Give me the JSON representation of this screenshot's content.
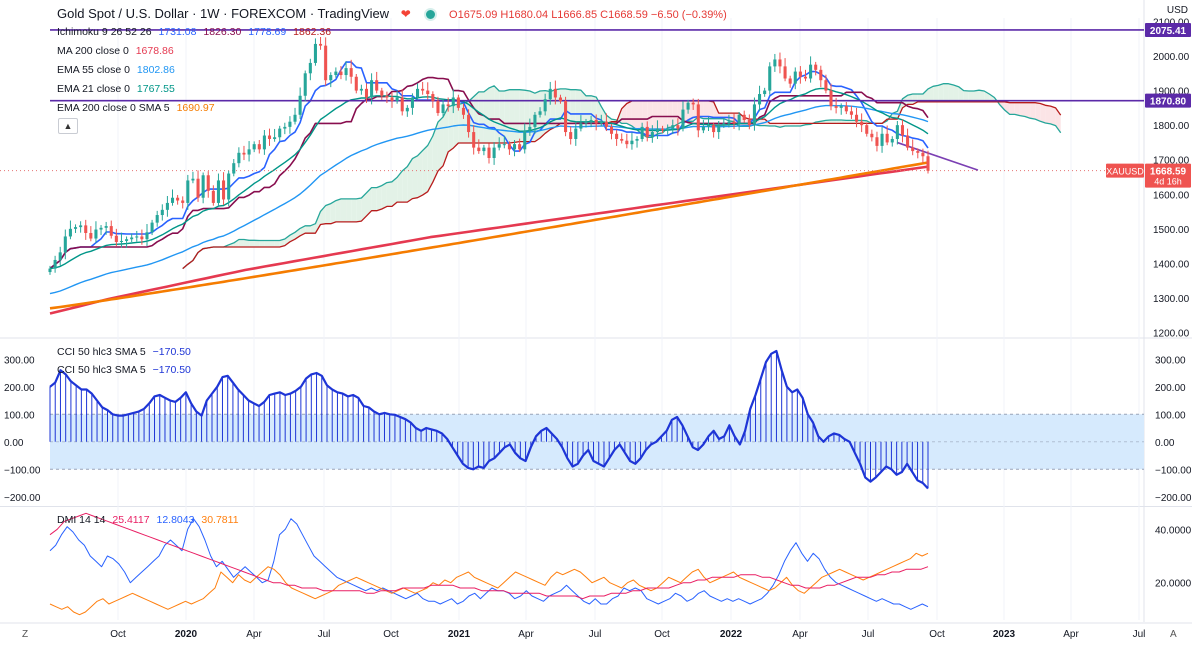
{
  "header": {
    "symbol_title": "Gold Spot / U.S. Dollar · 1W · FOREXCOM · TradingView",
    "open": "O1675.09",
    "high": "H1680.04",
    "low": "L1666.85",
    "close": "C1668.59",
    "change": "−6.50 (−0.39%)",
    "currency": "USD"
  },
  "legend": {
    "ichimoku": {
      "label": "Ichimoku 9 26 52 26",
      "v1": "1731.08",
      "v2": "1826.30",
      "v3": "1778.69",
      "v4": "1862.36"
    },
    "ma200": {
      "label": "MA 200 close 0",
      "value": "1678.86"
    },
    "ema55": {
      "label": "EMA 55 close 0",
      "value": "1802.86"
    },
    "ema21": {
      "label": "EMA 21 close 0",
      "value": "1767.55"
    },
    "ema200": {
      "label": "EMA 200 close 0 SMA 5",
      "value": "1690.97"
    },
    "cci_a": {
      "label": "CCI 50 hlc3 SMA 5",
      "value": "−170.50"
    },
    "cci_b": {
      "label": "CCI 50 hlc3 SMA 5",
      "value": "−170.50"
    },
    "dmi": {
      "label": "DMI 14 14",
      "v1": "25.4117",
      "v2": "12.8043",
      "v3": "30.7811"
    }
  },
  "price_tags": {
    "ticker": "XAUUSD",
    "last": "1668.59",
    "countdown": "4d 16h",
    "level_high": "2075.41",
    "level_mid": "1870.80"
  },
  "controls": {
    "z_left": "Z",
    "z_right": "A"
  },
  "colors": {
    "up": "#26a69a",
    "down": "#ef5350",
    "kijun": "#880e4f",
    "tenkan": "#2962ff",
    "cloud_up": "#e3f2e7",
    "cloud_down": "#fbe4e6",
    "spanA": "#26a69a",
    "spanB": "#b71c1c",
    "ma200": "#e53950",
    "ema55": "#2196f3",
    "ema21": "#009688",
    "ema200": "#f57c00",
    "cci": "#1e35d6",
    "level": "#5b2aa8",
    "dmi_plus": "#2962ff",
    "dmi_minus": "#ff7f0e",
    "adx": "#e91e63"
  },
  "chart_data": {
    "type": "line",
    "x_ticks": [
      "Oct",
      "2020",
      "Apr",
      "Jul",
      "Oct",
      "2021",
      "Apr",
      "Jul",
      "Oct",
      "2022",
      "Apr",
      "Jul",
      "Oct",
      "2023",
      "Apr",
      "Jul"
    ],
    "price_axis_ticks": [
      "2100.00",
      "2000.00",
      "1900.00",
      "1800.00",
      "1700.00",
      "1600.00",
      "1500.00",
      "1400.00",
      "1300.00",
      "1200.00"
    ],
    "price_ylim": [
      1190,
      2110
    ],
    "cci_axis_ticks": [
      "300.00",
      "200.00",
      "100.00",
      "0.00",
      "−100.00",
      "−200.00"
    ],
    "cci_ylim": [
      -230,
      370
    ],
    "cci_band": [
      -100,
      100
    ],
    "dmi_axis_ticks": [
      "40.0000",
      "20.0000"
    ],
    "dmi_ylim": [
      6,
      48
    ],
    "horizontal_levels": [
      2075.41,
      1870.8
    ],
    "last_close": 1668.59,
    "close": [
      1385,
      1410,
      1432,
      1478,
      1500,
      1505,
      1510,
      1488,
      1472,
      1498,
      1503,
      1508,
      1480,
      1462,
      1465,
      1470,
      1475,
      1478,
      1470,
      1490,
      1518,
      1540,
      1555,
      1575,
      1590,
      1582,
      1575,
      1640,
      1645,
      1590,
      1655,
      1610,
      1575,
      1640,
      1585,
      1660,
      1690,
      1720,
      1715,
      1730,
      1745,
      1730,
      1770,
      1760,
      1765,
      1790,
      1795,
      1810,
      1830,
      1885,
      1950,
      1980,
      2035,
      2030,
      1930,
      1945,
      1955,
      1945,
      1965,
      1940,
      1900,
      1905,
      1880,
      1930,
      1900,
      1885,
      1880,
      1870,
      1880,
      1840,
      1850,
      1880,
      1905,
      1900,
      1890,
      1870,
      1835,
      1860,
      1855,
      1880,
      1850,
      1830,
      1780,
      1735,
      1725,
      1735,
      1705,
      1735,
      1745,
      1745,
      1730,
      1745,
      1730,
      1785,
      1795,
      1830,
      1840,
      1875,
      1905,
      1880,
      1870,
      1780,
      1760,
      1790,
      1805,
      1810,
      1815,
      1805,
      1810,
      1795,
      1775,
      1760,
      1755,
      1745,
      1755,
      1760,
      1795,
      1765,
      1780,
      1790,
      1785,
      1790,
      1800,
      1790,
      1845,
      1865,
      1860,
      1785,
      1795,
      1800,
      1780,
      1800,
      1805,
      1810,
      1805,
      1830,
      1815,
      1800,
      1860,
      1890,
      1900,
      1970,
      1990,
      1970,
      1935,
      1920,
      1955,
      1940,
      1935,
      1975,
      1960,
      1930,
      1900,
      1855,
      1850,
      1855,
      1840,
      1830,
      1810,
      1800,
      1775,
      1765,
      1740,
      1775,
      1750,
      1760,
      1800,
      1770,
      1735,
      1725,
      1720,
      1710,
      1668
    ],
    "ma200": [
      1255,
      1262,
      1269,
      1276,
      1283,
      1290,
      1297,
      1303,
      1309,
      1315,
      1321,
      1327,
      1333,
      1339,
      1345,
      1351,
      1357,
      1363,
      1369,
      1375,
      1381,
      1386,
      1391,
      1396,
      1401,
      1406,
      1411,
      1416,
      1421,
      1426,
      1431,
      1436,
      1441,
      1446,
      1451,
      1456,
      1461,
      1466,
      1471,
      1476,
      1480,
      1484,
      1488,
      1492,
      1496,
      1500,
      1504,
      1508,
      1512,
      1516,
      1520,
      1524,
      1528,
      1532,
      1536,
      1540,
      1544,
      1548,
      1552,
      1556,
      1560,
      1564,
      1568,
      1572,
      1576,
      1580,
      1584,
      1588,
      1592,
      1596,
      1600,
      1604,
      1608,
      1612,
      1616,
      1620,
      1624,
      1628,
      1632,
      1636,
      1640,
      1644,
      1648,
      1652,
      1656,
      1660,
      1664,
      1668,
      1672,
      1676,
      1680
    ],
    "ema200_start_end": [
      1270,
      1692
    ],
    "ema55_start_end": [
      1310,
      1803
    ],
    "ema21_last": 1767.55,
    "cci": [
      200,
      215,
      260,
      245,
      220,
      205,
      190,
      190,
      175,
      150,
      125,
      115,
      100,
      95,
      95,
      100,
      105,
      110,
      120,
      140,
      165,
      170,
      160,
      150,
      145,
      160,
      180,
      140,
      110,
      95,
      150,
      175,
      200,
      235,
      240,
      215,
      190,
      170,
      150,
      140,
      130,
      145,
      170,
      175,
      180,
      170,
      175,
      185,
      200,
      230,
      245,
      250,
      240,
      205,
      190,
      180,
      175,
      165,
      170,
      160,
      130,
      125,
      110,
      100,
      105,
      100,
      98,
      90,
      82,
      70,
      50,
      40,
      50,
      45,
      40,
      30,
      10,
      -20,
      -50,
      -80,
      -95,
      -100,
      -90,
      -95,
      -70,
      -60,
      -40,
      -20,
      -10,
      -40,
      -60,
      -70,
      -20,
      20,
      40,
      50,
      30,
      10,
      -20,
      -60,
      -90,
      -80,
      -50,
      -30,
      -70,
      -80,
      -90,
      -60,
      -30,
      -10,
      -40,
      -70,
      -80,
      -60,
      -30,
      -10,
      0,
      20,
      40,
      80,
      90,
      60,
      20,
      -20,
      -30,
      -10,
      20,
      40,
      10,
      20,
      60,
      20,
      -10,
      40,
      120,
      170,
      230,
      290,
      320,
      330,
      260,
      200,
      180,
      190,
      160,
      100,
      70,
      20,
      0,
      20,
      30,
      25,
      10,
      0,
      -40,
      -80,
      -130,
      -145,
      -130,
      -110,
      -90,
      -100,
      -120,
      -110,
      -80,
      -110,
      -140,
      -150,
      -170
    ],
    "dmi_plus": [
      32,
      34,
      38,
      41,
      39,
      36,
      34,
      30,
      28,
      26,
      30,
      29,
      27,
      24,
      20,
      22,
      24,
      26,
      28,
      30,
      34,
      36,
      34,
      32,
      40,
      44,
      41,
      36,
      30,
      26,
      28,
      25,
      22,
      24,
      26,
      24,
      22,
      20,
      21,
      28,
      38,
      40,
      44,
      42,
      38,
      34,
      30,
      28,
      26,
      24,
      22,
      21,
      20,
      19,
      18,
      17,
      18,
      17,
      18,
      17,
      16,
      15,
      14,
      15,
      16,
      14,
      13,
      13,
      12,
      13,
      14,
      12,
      13,
      15,
      16,
      14,
      16,
      18,
      17,
      17,
      16,
      14,
      15,
      17,
      15,
      14,
      13,
      15,
      16,
      17,
      19,
      17,
      15,
      13,
      12,
      14,
      12,
      12,
      14,
      15,
      18,
      17,
      18,
      17,
      14,
      13,
      12,
      13,
      14,
      16,
      15,
      13,
      14,
      16,
      17,
      15,
      14,
      13,
      14,
      13,
      14,
      13,
      12,
      13,
      14,
      16,
      19,
      23,
      28,
      32,
      35,
      31,
      28,
      31,
      29,
      25,
      22,
      20,
      19,
      18,
      17,
      16,
      15,
      14,
      13,
      14,
      13,
      12,
      12,
      11,
      10,
      11,
      12,
      11
    ],
    "dmi_minus": [
      12,
      11,
      10,
      11,
      9,
      8,
      9,
      11,
      13,
      14,
      12,
      13,
      14,
      15,
      16,
      15,
      14,
      13,
      12,
      11,
      10,
      11,
      12,
      13,
      12,
      13,
      14,
      16,
      18,
      24,
      22,
      20,
      23,
      21,
      20,
      22,
      24,
      26,
      25,
      23,
      20,
      18,
      17,
      16,
      15,
      14,
      15,
      16,
      17,
      19,
      20,
      21,
      22,
      21,
      20,
      19,
      18,
      17,
      16,
      17,
      18,
      17,
      16,
      17,
      18,
      20,
      19,
      21,
      20,
      22,
      23,
      24,
      22,
      21,
      20,
      19,
      18,
      20,
      22,
      24,
      23,
      22,
      21,
      20,
      19,
      22,
      24,
      23,
      24,
      25,
      24,
      22,
      20,
      21,
      22,
      20,
      19,
      18,
      20,
      21,
      19,
      18,
      17,
      18,
      20,
      22,
      21,
      20,
      22,
      24,
      25,
      22,
      20,
      21,
      22,
      23,
      24,
      22,
      21,
      20,
      19,
      18,
      17,
      18,
      20,
      22,
      19,
      17,
      16,
      18,
      20,
      22,
      23,
      24,
      25,
      24,
      23,
      22,
      21,
      22,
      23,
      24,
      25,
      26,
      27,
      28,
      29,
      31,
      30,
      31
    ],
    "adx": [
      38,
      40,
      43,
      44,
      45,
      46,
      45,
      44,
      43,
      42,
      41,
      40,
      39,
      38,
      37,
      36,
      35,
      34,
      33,
      32,
      31,
      30,
      29,
      28,
      27,
      26,
      25,
      24,
      23,
      22,
      21,
      20,
      20,
      19,
      19,
      18,
      18,
      18,
      17,
      17,
      17,
      17,
      17,
      17,
      16,
      16,
      17,
      17,
      17,
      18,
      18,
      18,
      18,
      19,
      19,
      19,
      19,
      18,
      18,
      18,
      17,
      17,
      17,
      17,
      16,
      16,
      16,
      16,
      16,
      15,
      15,
      15,
      15,
      15,
      14,
      15,
      15,
      15,
      16,
      16,
      16,
      17,
      17,
      18,
      18,
      18,
      18,
      19,
      20,
      20,
      21,
      21,
      22,
      22,
      22,
      22,
      23,
      23,
      23,
      22,
      22,
      21,
      20,
      19,
      19,
      18,
      18,
      18,
      19,
      19,
      20,
      21,
      22,
      22,
      22,
      23,
      23,
      24,
      24,
      25,
      25,
      25,
      26
    ]
  }
}
